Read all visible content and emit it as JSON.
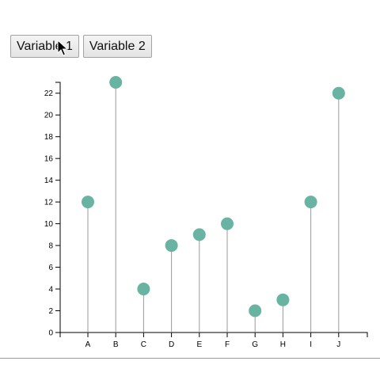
{
  "controls": {
    "button_variable_1": "Variable 1",
    "button_variable_2": "Variable 2"
  },
  "colors": {
    "point_fill": "#69b3a2",
    "stem": "#9a9a9a",
    "axis": "#000000"
  },
  "icons": {
    "cursor": "arrow-pointer-icon"
  },
  "chart_data": {
    "type": "lollipop",
    "categories": [
      "A",
      "B",
      "C",
      "D",
      "E",
      "F",
      "G",
      "H",
      "I",
      "J"
    ],
    "values": [
      12,
      23,
      4,
      8,
      9,
      10,
      2,
      3,
      12,
      22
    ],
    "ylim": [
      0,
      23
    ],
    "yticks": [
      0,
      2,
      4,
      6,
      8,
      10,
      12,
      14,
      16,
      18,
      20,
      22
    ],
    "title": "",
    "xlabel": "",
    "ylabel": "",
    "grid": false,
    "legend": "none"
  }
}
